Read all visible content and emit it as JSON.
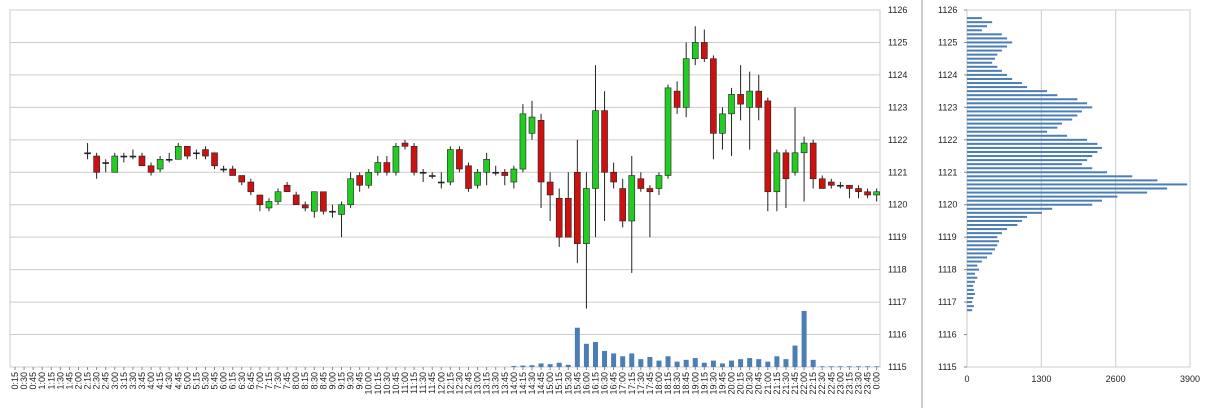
{
  "chart_data": [
    {
      "type": "candlestick",
      "categories": [
        "0:15",
        "0:30",
        "0:45",
        "1:00",
        "1:15",
        "1:30",
        "1:45",
        "2:00",
        "2:15",
        "2:30",
        "2:45",
        "3:00",
        "3:15",
        "3:30",
        "3:45",
        "4:00",
        "4:15",
        "4:30",
        "4:45",
        "5:00",
        "5:15",
        "5:30",
        "5:45",
        "6:00",
        "6:15",
        "6:30",
        "6:45",
        "7:00",
        "7:15",
        "7:30",
        "7:45",
        "8:00",
        "8:15",
        "8:30",
        "8:45",
        "9:00",
        "9:15",
        "9:30",
        "9:45",
        "10:00",
        "10:15",
        "10:30",
        "10:45",
        "11:00",
        "11:15",
        "11:30",
        "11:45",
        "12:00",
        "12:15",
        "12:30",
        "12:45",
        "13:00",
        "13:15",
        "13:30",
        "13:45",
        "14:00",
        "14:15",
        "14:30",
        "14:45",
        "15:00",
        "15:15",
        "15:30",
        "15:45",
        "16:00",
        "16:15",
        "16:30",
        "16:45",
        "17:00",
        "17:15",
        "17:30",
        "17:45",
        "18:00",
        "18:15",
        "18:30",
        "18:45",
        "19:00",
        "19:15",
        "19:30",
        "19:45",
        "20:00",
        "20:15",
        "20:30",
        "20:45",
        "21:00",
        "21:15",
        "21:30",
        "21:45",
        "22:00",
        "22:15",
        "22:30",
        "22:45",
        "23:00",
        "23:15",
        "23:30",
        "23:45",
        "0:00"
      ],
      "open": [
        null,
        null,
        null,
        null,
        null,
        null,
        null,
        null,
        1121.6,
        1121.5,
        1121.3,
        1121.0,
        1121.5,
        1121.5,
        1121.5,
        1121.2,
        1121.1,
        1121.4,
        1121.4,
        1121.8,
        1121.6,
        1121.7,
        1121.6,
        1121.1,
        1121.1,
        1120.9,
        1120.7,
        1120.3,
        1119.9,
        1120.1,
        1120.6,
        1120.3,
        1120.0,
        1119.8,
        1120.4,
        1119.8,
        1119.7,
        1120.0,
        1120.9,
        1120.6,
        1121.0,
        1121.3,
        1121.0,
        1121.9,
        1121.8,
        1121.0,
        1120.9,
        1120.7,
        1120.7,
        1121.7,
        1121.2,
        1120.6,
        1121.0,
        1121.0,
        1121.0,
        1120.7,
        1121.1,
        1122.2,
        1122.6,
        1120.7,
        1120.2,
        1120.2,
        1121.0,
        1118.8,
        1120.5,
        1122.9,
        1121.0,
        1120.5,
        1119.5,
        1120.8,
        1120.5,
        1120.5,
        1120.9,
        1123.5,
        1123.0,
        1124.5,
        1125.0,
        1124.5,
        1122.2,
        1122.8,
        1123.4,
        1123.0,
        1123.5,
        1123.2,
        1120.4,
        1121.6,
        1121.0,
        1121.6,
        1121.9,
        1120.8,
        1120.7,
        1120.6,
        1120.6,
        1120.5,
        1120.4,
        1120.3
      ],
      "high": [
        null,
        null,
        null,
        null,
        null,
        null,
        null,
        null,
        1121.9,
        1121.6,
        1121.4,
        1121.6,
        1121.6,
        1121.7,
        1121.6,
        1121.3,
        1121.5,
        1121.6,
        1121.9,
        1121.8,
        1121.7,
        1121.8,
        1121.6,
        1121.2,
        1121.2,
        1120.9,
        1120.8,
        1120.3,
        1120.2,
        1120.5,
        1120.7,
        1120.4,
        1120.1,
        1120.4,
        1120.4,
        1120.0,
        1120.1,
        1121.0,
        1121.0,
        1121.1,
        1121.5,
        1121.5,
        1121.9,
        1122.0,
        1121.9,
        1121.1,
        1121.0,
        1121.0,
        1121.8,
        1121.8,
        1121.3,
        1121.1,
        1121.6,
        1121.2,
        1121.1,
        1121.2,
        1123.1,
        1123.2,
        1122.8,
        1121.0,
        1120.5,
        1121.0,
        1122.0,
        1121.0,
        1124.3,
        1123.5,
        1121.3,
        1120.8,
        1121.5,
        1121.0,
        1120.6,
        1121.0,
        1123.7,
        1123.8,
        1125.0,
        1125.5,
        1125.4,
        1124.6,
        1123.0,
        1123.6,
        1124.3,
        1124.1,
        1124.0,
        1123.3,
        1121.7,
        1121.7,
        1123.0,
        1122.1,
        1122.0,
        1120.9,
        1120.8,
        1120.7,
        1120.6,
        1120.6,
        1120.5,
        1120.5
      ],
      "low": [
        null,
        null,
        null,
        null,
        null,
        null,
        null,
        null,
        1121.4,
        1120.8,
        1121.0,
        1121.0,
        1121.3,
        1121.4,
        1121.2,
        1120.9,
        1121.0,
        1121.3,
        1121.4,
        1121.4,
        1121.4,
        1121.4,
        1121.1,
        1121.0,
        1120.9,
        1120.6,
        1120.3,
        1119.8,
        1119.8,
        1120.0,
        1120.4,
        1120.0,
        1119.8,
        1119.6,
        1119.7,
        1119.6,
        1119.0,
        1119.9,
        1120.4,
        1120.5,
        1120.9,
        1120.9,
        1120.9,
        1121.7,
        1120.9,
        1120.7,
        1120.8,
        1120.5,
        1120.6,
        1121.0,
        1120.4,
        1120.5,
        1120.6,
        1120.9,
        1120.6,
        1120.5,
        1121.0,
        1122.0,
        1119.9,
        1119.5,
        1118.7,
        1119.0,
        1118.2,
        1116.8,
        1119.0,
        1119.5,
        1120.5,
        1119.3,
        1117.9,
        1120.4,
        1119.0,
        1120.3,
        1120.8,
        1122.8,
        1122.7,
        1124.3,
        1124.4,
        1121.4,
        1121.7,
        1121.5,
        1122.6,
        1121.7,
        1122.6,
        1119.8,
        1119.8,
        1119.9,
        1120.9,
        1120.1,
        1120.5,
        1120.5,
        1120.5,
        1120.5,
        1120.2,
        1120.2,
        1120.2,
        1120.1
      ],
      "close": [
        null,
        null,
        null,
        null,
        null,
        null,
        null,
        null,
        1121.6,
        1121.0,
        1121.3,
        1121.5,
        1121.5,
        1121.5,
        1121.2,
        1121.0,
        1121.4,
        1121.4,
        1121.8,
        1121.5,
        1121.6,
        1121.5,
        1121.2,
        1121.1,
        1120.9,
        1120.7,
        1120.4,
        1120.0,
        1120.1,
        1120.4,
        1120.4,
        1120.0,
        1119.9,
        1120.4,
        1119.8,
        1119.8,
        1120.0,
        1120.8,
        1120.6,
        1121.0,
        1121.3,
        1121.0,
        1121.8,
        1121.8,
        1121.0,
        1121.0,
        1120.9,
        1120.7,
        1121.7,
        1121.1,
        1120.5,
        1121.0,
        1121.4,
        1121.0,
        1120.9,
        1121.1,
        1122.8,
        1122.7,
        1120.7,
        1120.3,
        1119.0,
        1119.0,
        1118.8,
        1120.5,
        1122.9,
        1121.0,
        1120.7,
        1119.5,
        1120.9,
        1120.5,
        1120.4,
        1120.9,
        1123.6,
        1123.0,
        1124.5,
        1125.0,
        1124.5,
        1122.2,
        1122.8,
        1123.4,
        1123.1,
        1123.5,
        1123.0,
        1120.4,
        1121.6,
        1120.8,
        1121.6,
        1121.9,
        1120.8,
        1120.5,
        1120.6,
        1120.6,
        1120.5,
        1120.4,
        1120.3,
        1120.4
      ],
      "volume": [
        0,
        0,
        0,
        0,
        0,
        0,
        0,
        0,
        0,
        0,
        0,
        0,
        0,
        0,
        0,
        0,
        0,
        0,
        0,
        0,
        0,
        0,
        0,
        0,
        0,
        0,
        0,
        0,
        0,
        0,
        0,
        0,
        0,
        0,
        0,
        0,
        0,
        0,
        0,
        0,
        0,
        0,
        0,
        0,
        0,
        0,
        0,
        0,
        0,
        0,
        0,
        0,
        0,
        0,
        0,
        3,
        4,
        5,
        10,
        8,
        12,
        6,
        110,
        65,
        70,
        45,
        38,
        30,
        38,
        22,
        28,
        18,
        30,
        15,
        20,
        25,
        12,
        18,
        10,
        18,
        22,
        25,
        22,
        15,
        30,
        22,
        60,
        157,
        20,
        2,
        2,
        2,
        2,
        2,
        2,
        2
      ],
      "up_color": "#22cc22",
      "down_color": "#cc1111",
      "volume_color": "#4a7eb5",
      "ylim": [
        1115,
        1126
      ],
      "yticks": [
        1115,
        1116,
        1117,
        1118,
        1119,
        1120,
        1121,
        1122,
        1123,
        1124,
        1125,
        1126
      ],
      "y2lim": [
        0,
        1000
      ],
      "grid": true
    },
    {
      "type": "hbar",
      "y": [
        1125.75,
        1125.625,
        1125.5,
        1125.375,
        1125.25,
        1125.125,
        1125,
        1124.875,
        1124.75,
        1124.625,
        1124.5,
        1124.375,
        1124.25,
        1124.125,
        1124,
        1123.875,
        1123.75,
        1123.625,
        1123.5,
        1123.375,
        1123.25,
        1123.125,
        1123,
        1122.875,
        1122.75,
        1122.625,
        1122.5,
        1122.375,
        1122.25,
        1122.125,
        1122,
        1121.875,
        1121.75,
        1121.625,
        1121.5,
        1121.375,
        1121.25,
        1121.125,
        1121,
        1120.875,
        1120.75,
        1120.625,
        1120.5,
        1120.375,
        1120.25,
        1120.125,
        1120,
        1119.875,
        1119.75,
        1119.625,
        1119.5,
        1119.375,
        1119.25,
        1119.125,
        1119,
        1118.875,
        1118.75,
        1118.625,
        1118.5,
        1118.375,
        1118.25,
        1118.125,
        1118,
        1117.875,
        1117.75,
        1117.625,
        1117.5,
        1117.375,
        1117.25,
        1117.125,
        1117,
        1116.875,
        1116.75
      ],
      "values": [
        260,
        440,
        350,
        260,
        610,
        700,
        790,
        700,
        610,
        530,
        490,
        440,
        530,
        610,
        700,
        790,
        960,
        1050,
        1400,
        1580,
        1930,
        2100,
        2190,
        2010,
        1930,
        1840,
        1660,
        1580,
        1400,
        1750,
        2100,
        2280,
        2360,
        2280,
        2190,
        2100,
        2010,
        2190,
        2450,
        2890,
        3330,
        3850,
        3500,
        3150,
        2630,
        2360,
        2190,
        1490,
        1310,
        1050,
        960,
        880,
        700,
        610,
        530,
        560,
        530,
        490,
        440,
        350,
        260,
        180,
        210,
        140,
        180,
        140,
        110,
        120,
        140,
        110,
        90,
        120,
        90
      ],
      "color": "#4a7eb5",
      "xlim": [
        0,
        3900
      ],
      "xticks": [
        0,
        1300,
        2600,
        3900
      ],
      "ylim": [
        1115,
        1126
      ],
      "yticks": [
        1115,
        1116,
        1117,
        1118,
        1119,
        1120,
        1121,
        1122,
        1123,
        1124,
        1125,
        1126
      ],
      "grid": true
    }
  ]
}
